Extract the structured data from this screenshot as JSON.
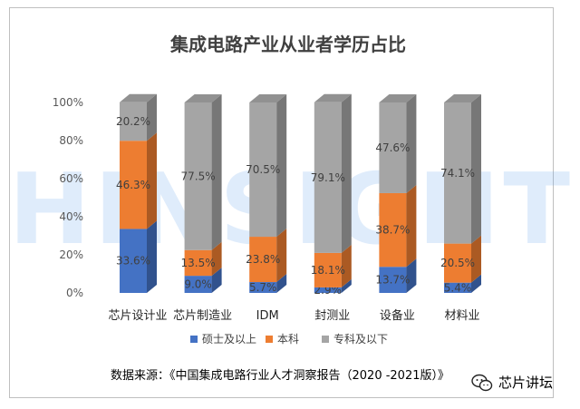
{
  "chart_data": {
    "type": "bar",
    "stacked": true,
    "style": "3d-column",
    "title": "集成电路产业从业者学历占比",
    "xlabel": "",
    "ylabel": "",
    "ylim": [
      0,
      100
    ],
    "yticks": [
      "0%",
      "20%",
      "40%",
      "60%",
      "80%",
      "100%"
    ],
    "categories": [
      "芯片设计业",
      "芯片制造业",
      "IDM",
      "封测业",
      "设备业",
      "材料业"
    ],
    "series": [
      {
        "name": "硕士及以上",
        "color": "#4472c4",
        "values": [
          33.6,
          9.0,
          5.7,
          2.9,
          13.7,
          5.4
        ],
        "labels": [
          "33.6%",
          "9.0%",
          "5.7%",
          "2.9%",
          "13.7%",
          "5.4%"
        ]
      },
      {
        "name": "本科",
        "color": "#ed7d31",
        "values": [
          46.3,
          13.5,
          23.8,
          18.1,
          38.7,
          20.5
        ],
        "labels": [
          "46.3%",
          "13.5%",
          "23.8%",
          "18.1%",
          "38.7%",
          "20.5%"
        ]
      },
      {
        "name": "专科及以下",
        "color": "#a5a5a5",
        "values": [
          20.2,
          77.5,
          70.5,
          79.1,
          47.6,
          74.1
        ],
        "labels": [
          "20.2%",
          "77.5%",
          "70.5%",
          "79.1%",
          "47.6%",
          "74.1%"
        ]
      }
    ],
    "legend_position": "bottom",
    "grid": false
  },
  "source_note": "数据来源：《中国集成电路行业人才洞察报告（2020 -2021版）》",
  "watermark": "JIHINSIGHTS",
  "brand": {
    "icon": "wechat-icon",
    "name": "芯片讲坛"
  }
}
